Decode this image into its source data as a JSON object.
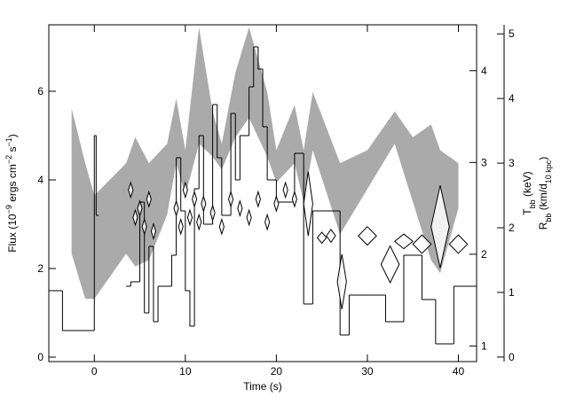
{
  "chart_data": {
    "type": "flux-temperature-radius",
    "xlabel": "Time (s)",
    "xlim": [
      -5,
      42
    ],
    "xticks": [
      0,
      10,
      20,
      30,
      40
    ],
    "ylabel": [
      "Flux (10",
      "−9",
      " ergs cm",
      "−2",
      " s",
      "−1",
      ")"
    ],
    "ylim": [
      -0.1,
      7.5
    ],
    "yticks": [
      0,
      2,
      4,
      6
    ],
    "y2label": [
      "T",
      "bb",
      " (keV)"
    ],
    "y2lim": [
      0.83,
      4.5
    ],
    "y2ticks": [
      1,
      2,
      3,
      4
    ],
    "y3label": [
      "R",
      "bb",
      " (km/d",
      "10 kpc",
      ")"
    ],
    "y3lim": [
      -0.07,
      5.14
    ],
    "y3ticks": [
      0,
      1,
      2,
      3,
      4,
      5
    ],
    "flux": {
      "color": "#000000",
      "bins": [
        -5,
        -3.5,
        0,
        0.2,
        0.5,
        3.5,
        4,
        5,
        5.5,
        6,
        6.5,
        7,
        8.5,
        9,
        9.5,
        10,
        10.5,
        11,
        11.5,
        12,
        13,
        13.5,
        14,
        15,
        15.5,
        16,
        17,
        17.5,
        18,
        18.5,
        19,
        20,
        22,
        23,
        24,
        27,
        28,
        30,
        32,
        34,
        36,
        37.5,
        39.5,
        42
      ],
      "values": [
        1.5,
        0.6,
        5.0,
        3.2,
        null,
        1.6,
        1.7,
        3.5,
        1.0,
        2.5,
        0.8,
        1.6,
        2.3,
        4.5,
        3.3,
        1.5,
        0.7,
        3.8,
        5.0,
        3.0,
        5.7,
        4.5,
        3.2,
        5.5,
        4.0,
        5.0,
        6.1,
        7.0,
        6.5,
        5.2,
        4.0,
        3.5,
        4.6,
        1.2,
        3.3,
        0.5,
        1.4,
        1.4,
        0.8,
        2.3,
        1.3,
        0.3,
        1.6
      ]
    },
    "temperature": {
      "axis": "y2",
      "color": "#000000",
      "x": [
        4,
        4.5,
        5,
        5.5,
        6,
        6.5,
        9,
        9.5,
        10,
        10.5,
        11,
        11.5,
        12,
        13,
        14,
        15,
        16,
        17,
        18,
        19,
        20,
        21,
        22,
        23.5,
        25,
        26,
        27.2,
        30,
        32.5,
        34,
        36,
        38,
        40
      ],
      "values": [
        2.7,
        2.4,
        2.5,
        2.3,
        2.6,
        2.25,
        2.5,
        2.3,
        2.7,
        2.4,
        2.6,
        2.35,
        2.55,
        2.45,
        2.3,
        2.6,
        2.5,
        2.4,
        2.6,
        2.35,
        2.55,
        2.7,
        2.6,
        2.55,
        2.18,
        2.2,
        1.7,
        2.2,
        1.89,
        2.14,
        2.11,
        2.3,
        2.11
      ],
      "errors": [
        0.08,
        0.08,
        0.08,
        0.08,
        0.08,
        0.08,
        0.08,
        0.08,
        0.08,
        0.08,
        0.08,
        0.08,
        0.08,
        0.08,
        0.08,
        0.08,
        0.08,
        0.08,
        0.08,
        0.08,
        0.08,
        0.08,
        0.08,
        0.35,
        0.06,
        0.07,
        0.3,
        0.1,
        0.2,
        0.08,
        0.1,
        0.45,
        0.1
      ],
      "xerr": [
        0.25,
        0.25,
        0.25,
        0.25,
        0.25,
        0.25,
        0.25,
        0.25,
        0.25,
        0.25,
        0.25,
        0.25,
        0.25,
        0.25,
        0.25,
        0.25,
        0.25,
        0.25,
        0.25,
        0.25,
        0.25,
        0.25,
        0.25,
        0.5,
        0.5,
        0.5,
        0.5,
        1.0,
        1.0,
        1.0,
        1.0,
        1.0,
        1.0
      ]
    },
    "radius": {
      "axis": "y3",
      "color": "#aaaaaa",
      "x": [
        -2.5,
        -1,
        0,
        3.5,
        4.5,
        6,
        8,
        9,
        10,
        11.5,
        13,
        14,
        15.5,
        17,
        19,
        20,
        22,
        23,
        24,
        27,
        30,
        33,
        35,
        37,
        38,
        40
      ],
      "upper": [
        3.85,
        3.0,
        2.5,
        3.0,
        3.4,
        3.0,
        3.3,
        4.0,
        3.2,
        5.1,
        3.8,
        3.3,
        4.4,
        5.1,
        4.1,
        3.2,
        3.9,
        3.2,
        4.1,
        3.0,
        3.2,
        3.8,
        3.4,
        3.6,
        3.2,
        3.0
      ],
      "lower": [
        1.6,
        0.9,
        0.9,
        1.6,
        1.4,
        1.5,
        2.2,
        3.0,
        2.5,
        3.3,
        3.1,
        2.9,
        3.4,
        3.7,
        3.1,
        2.7,
        3.0,
        2.4,
        3.2,
        1.9,
        2.6,
        3.3,
        2.4,
        1.5,
        1.3,
        2.3
      ]
    }
  }
}
